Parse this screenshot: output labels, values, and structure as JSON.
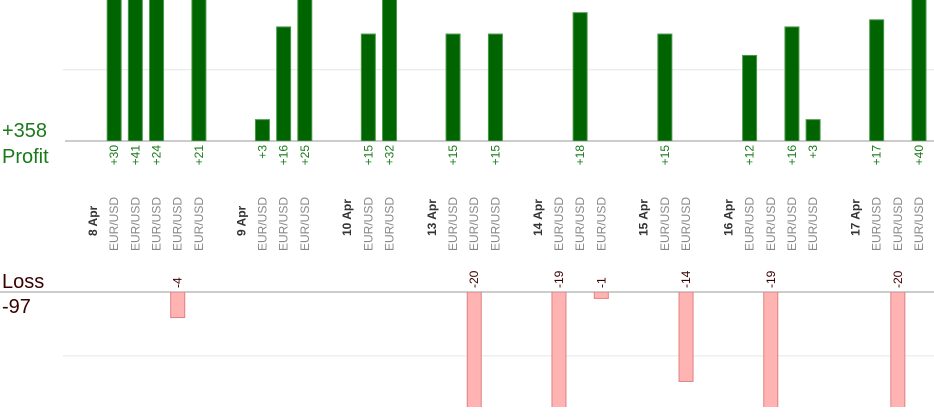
{
  "chart_data": {
    "type": "bar",
    "categories": [
      "8 Apr",
      "EUR/USD",
      "EUR/USD",
      "EUR/USD",
      "EUR/USD",
      "EUR/USD",
      null,
      "9 Apr",
      "EUR/USD",
      "EUR/USD",
      "EUR/USD",
      null,
      "10 Apr",
      "EUR/USD",
      "EUR/USD",
      null,
      "13 Apr",
      "EUR/USD",
      "EUR/USD",
      "EUR/USD",
      null,
      "14 Apr",
      "EUR/USD",
      "EUR/USD",
      "EUR/USD",
      null,
      "15 Apr",
      "EUR/USD",
      "EUR/USD",
      null,
      "16 Apr",
      "EUR/USD",
      "EUR/USD",
      "EUR/USD",
      "EUR/USD",
      null,
      "17 Apr",
      "EUR/USD",
      "EUR/USD",
      "EUR/USD"
    ],
    "date_labels": [
      "8 Apr",
      "9 Apr",
      "10 Apr",
      "13 Apr",
      "14 Apr",
      "15 Apr",
      "16 Apr",
      "17 Apr"
    ],
    "series": [
      {
        "name": "Profit",
        "total": "+358",
        "color": "#006400",
        "values": [
          null,
          30,
          41,
          24,
          null,
          21,
          null,
          null,
          3,
          16,
          25,
          null,
          null,
          15,
          32,
          null,
          null,
          15,
          null,
          15,
          null,
          null,
          null,
          18,
          null,
          null,
          null,
          15,
          null,
          null,
          null,
          12,
          null,
          16,
          3,
          null,
          null,
          17,
          null,
          40
        ],
        "value_labels": [
          null,
          "+30",
          "+41",
          "+24",
          null,
          "+21",
          null,
          null,
          "+3",
          "+16",
          "+25",
          null,
          null,
          "+15",
          "+32",
          null,
          null,
          "+15",
          null,
          "+15",
          null,
          null,
          null,
          "+18",
          null,
          null,
          null,
          "+15",
          null,
          null,
          null,
          "+12",
          null,
          "+16",
          "+3",
          null,
          null,
          "+17",
          null,
          "+40"
        ],
        "ylim": [
          0,
          20
        ],
        "yticks": [
          0,
          10,
          20
        ]
      },
      {
        "name": "Loss",
        "total": "-97",
        "color": "#ffb3b3",
        "values": [
          null,
          null,
          null,
          null,
          -4,
          null,
          null,
          null,
          null,
          null,
          null,
          null,
          null,
          null,
          null,
          null,
          null,
          null,
          -20,
          null,
          null,
          null,
          -19,
          null,
          -1,
          null,
          null,
          null,
          -14,
          null,
          null,
          null,
          -19,
          null,
          null,
          null,
          null,
          null,
          -20,
          null
        ],
        "value_labels": [
          null,
          null,
          null,
          null,
          "-4",
          null,
          null,
          null,
          null,
          null,
          null,
          null,
          null,
          null,
          null,
          null,
          null,
          null,
          "-20",
          null,
          null,
          null,
          "-19",
          null,
          "-1",
          null,
          null,
          null,
          "-14",
          null,
          null,
          null,
          "-19",
          null,
          null,
          null,
          null,
          null,
          "-20",
          null
        ],
        "ylim": [
          -18,
          0
        ],
        "yticks": [
          0,
          -10
        ]
      }
    ],
    "grid": true
  }
}
